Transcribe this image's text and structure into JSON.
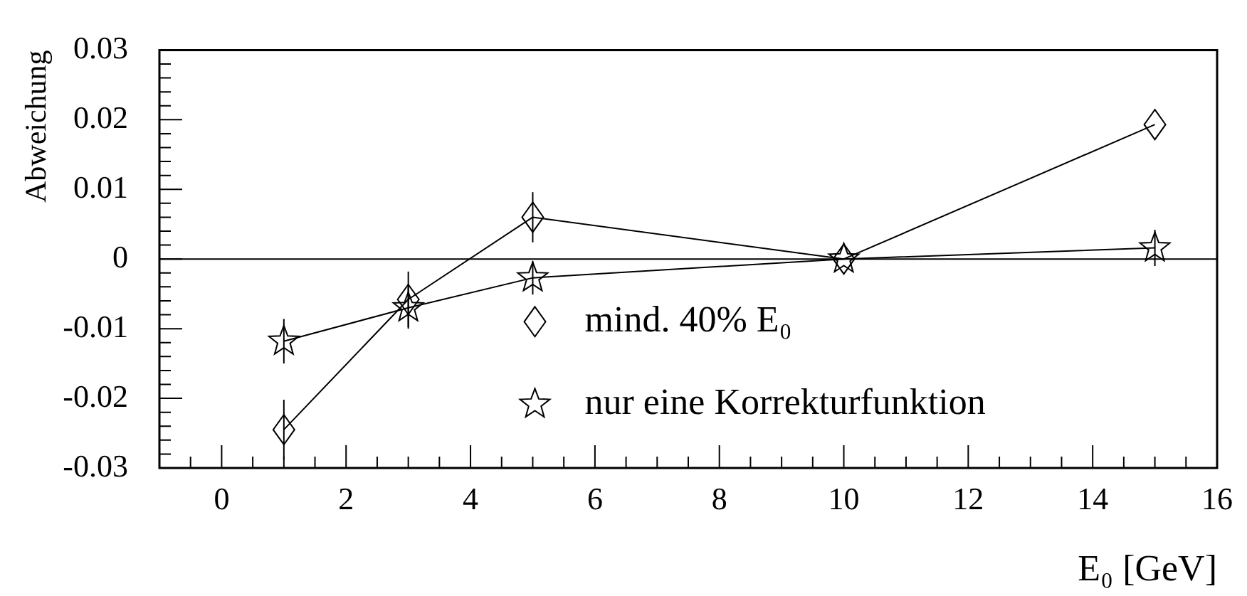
{
  "chart_data": {
    "type": "line",
    "xlabel": "E₀ [GeV]",
    "ylabel": "Abweichung",
    "x": [
      1,
      3,
      5,
      10,
      15
    ],
    "xlim": [
      -1,
      16
    ],
    "xticks": [
      {
        "value": -0.5,
        "label": null
      },
      0,
      {
        "value": 0.5,
        "label": null
      },
      {
        "value": 1,
        "label": null
      },
      {
        "value": 1.5,
        "label": null
      },
      2,
      {
        "value": 2.5,
        "label": null
      },
      {
        "value": 3,
        "label": null
      },
      {
        "value": 3.5,
        "label": null
      },
      4,
      {
        "value": 4.5,
        "label": null
      },
      {
        "value": 5,
        "label": null
      },
      {
        "value": 5.5,
        "label": null
      },
      6,
      {
        "value": 6.5,
        "label": null
      },
      {
        "value": 7,
        "label": null
      },
      {
        "value": 7.5,
        "label": null
      },
      8,
      {
        "value": 8.5,
        "label": null
      },
      {
        "value": 9,
        "label": null
      },
      {
        "value": 9.5,
        "label": null
      },
      10,
      {
        "value": 10.5,
        "label": null
      },
      {
        "value": 11,
        "label": null
      },
      {
        "value": 11.5,
        "label": null
      },
      12,
      {
        "value": 12.5,
        "label": null
      },
      {
        "value": 13,
        "label": null
      },
      {
        "value": 13.5,
        "label": null
      },
      14,
      {
        "value": 14.5,
        "label": null
      },
      {
        "value": 15,
        "label": null
      },
      {
        "value": 15.5,
        "label": null
      },
      16
    ],
    "ylim": [
      -0.03,
      0.03
    ],
    "yticks": [
      -0.03,
      {
        "value": -0.028,
        "label": null
      },
      {
        "value": -0.026,
        "label": null
      },
      {
        "value": -0.024,
        "label": null
      },
      {
        "value": -0.022,
        "label": null
      },
      -0.02,
      {
        "value": -0.018,
        "label": null
      },
      {
        "value": -0.016,
        "label": null
      },
      {
        "value": -0.014,
        "label": null
      },
      {
        "value": -0.012,
        "label": null
      },
      -0.01,
      {
        "value": -0.008,
        "label": null
      },
      {
        "value": -0.006,
        "label": null
      },
      {
        "value": -0.004,
        "label": null
      },
      {
        "value": -0.002,
        "label": null
      },
      0,
      {
        "value": 0.002,
        "label": null
      },
      {
        "value": 0.004,
        "label": null
      },
      {
        "value": 0.006,
        "label": null
      },
      {
        "value": 0.008,
        "label": null
      },
      0.01,
      {
        "value": 0.012,
        "label": null
      },
      {
        "value": 0.014,
        "label": null
      },
      {
        "value": 0.016,
        "label": null
      },
      {
        "value": 0.018,
        "label": null
      },
      0.02,
      {
        "value": 0.022,
        "label": null
      },
      {
        "value": 0.024,
        "label": null
      },
      {
        "value": 0.026,
        "label": null
      },
      {
        "value": 0.028,
        "label": null
      },
      0.03
    ],
    "legend": "bottom",
    "line_style": "solid",
    "ref_lines": [
      {
        "axis": "y",
        "value": 0,
        "color": "#000000"
      }
    ],
    "series": [
      {
        "name": "mind. 40% E₀",
        "color": "#000000",
        "marker": "diamond",
        "values": [
          -0.0245,
          -0.0058,
          0.006,
          0,
          0.0193
        ],
        "errors": [
          0.0043,
          0.004,
          0.0036,
          null,
          null
        ]
      },
      {
        "name": "nur eine Korrekturfunktion",
        "color": "#000000",
        "marker": "star",
        "values": [
          -0.0118,
          -0.007,
          -0.0027,
          0,
          0.0016
        ],
        "errors": [
          0.0032,
          0.003,
          0.0024,
          null,
          0.0026
        ]
      }
    ]
  }
}
